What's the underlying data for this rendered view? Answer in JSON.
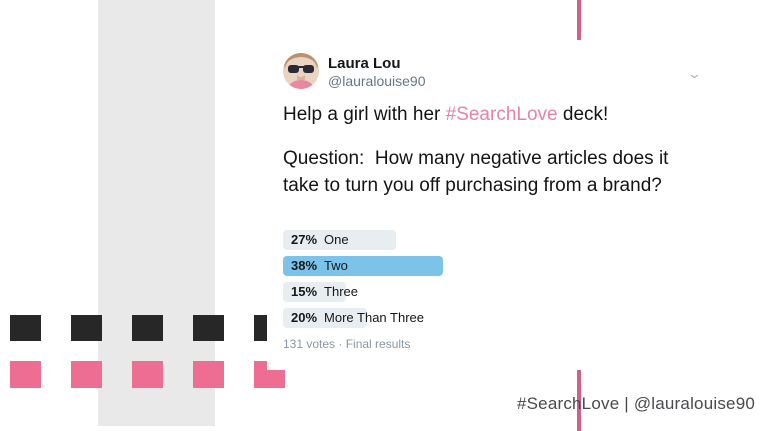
{
  "slide": {
    "caption": "#SearchLove | @lauralouise90"
  },
  "tweet": {
    "author": {
      "name": "Laura Lou",
      "handle": "@lauralouise90"
    },
    "body": {
      "prefix": "Help a girl with her ",
      "hashtag": "#SearchLove",
      "suffix": " deck!"
    },
    "question": "Question:  How many negative articles does it take to turn you off purchasing from a brand?",
    "poll": {
      "options": [
        {
          "pct_label": "27%",
          "label": "One",
          "value": 27,
          "winner": false
        },
        {
          "pct_label": "38%",
          "label": "Two",
          "value": 38,
          "winner": true
        },
        {
          "pct_label": "15%",
          "label": "Three",
          "value": 15,
          "winner": false
        },
        {
          "pct_label": "20%",
          "label": "More Than Three",
          "value": 20,
          "winner": false
        }
      ],
      "footer": "131 votes · Final results"
    },
    "icons": {
      "chevron_down": "⌄"
    }
  },
  "colors": {
    "accent_pink_square": "#ee6d93",
    "accent_pink_rule": "#cf6088",
    "hashtag_pink": "#e583a3",
    "poll_winner_blue": "#7cc3ea",
    "poll_bar_gray": "#e7edf1",
    "band_gray": "#e9e9e9",
    "square_black": "#272727",
    "handle_gray": "#657786",
    "caption_gray": "#4a4a4e"
  }
}
